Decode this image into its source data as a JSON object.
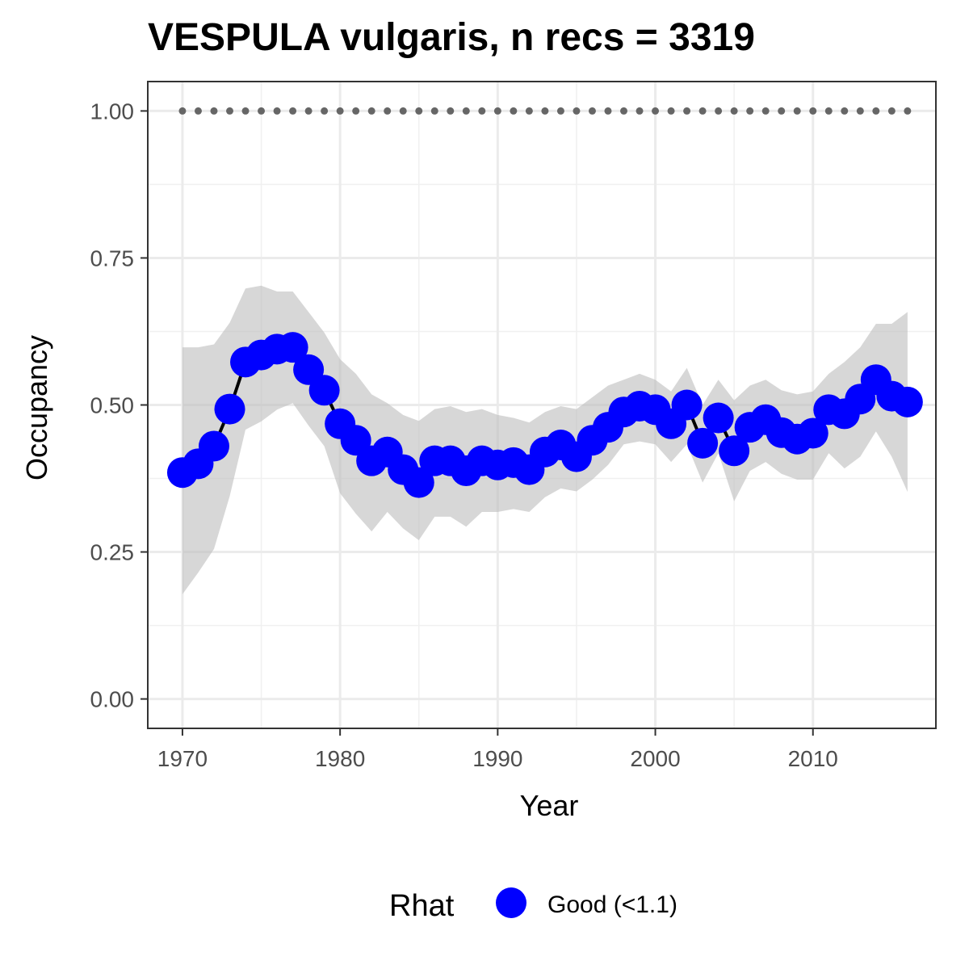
{
  "chart_data": {
    "type": "line",
    "title": "VESPULA vulgaris, n recs = 3319",
    "xlabel": "Year",
    "ylabel": "Occupancy",
    "xlim": [
      1967.8,
      2017.8
    ],
    "ylim": [
      -0.05,
      1.05
    ],
    "x_ticks": [
      1970,
      1980,
      1990,
      2000,
      2010
    ],
    "x_tick_labels": [
      "1970",
      "1980",
      "1990",
      "2000",
      "2010"
    ],
    "y_ticks": [
      0,
      0.25,
      0.5,
      0.75,
      1
    ],
    "y_tick_labels": [
      "0.00",
      "0.25",
      "0.50",
      "0.75",
      "1.00"
    ],
    "grid": true,
    "legend": {
      "position": "bottom",
      "title": "Rhat",
      "entries": [
        {
          "label": "Good (<1.1)",
          "color": "#0000ff"
        }
      ]
    },
    "colors": {
      "points": "#0000ff",
      "line": "#000000",
      "ribbon": "#bdbdbd",
      "reference": "#666666"
    },
    "x": [
      1970,
      1971,
      1972,
      1973,
      1974,
      1975,
      1976,
      1977,
      1978,
      1979,
      1980,
      1981,
      1982,
      1983,
      1984,
      1985,
      1986,
      1987,
      1988,
      1989,
      1990,
      1991,
      1992,
      1993,
      1994,
      1995,
      1996,
      1997,
      1998,
      1999,
      2000,
      2001,
      2002,
      2003,
      2004,
      2005,
      2006,
      2007,
      2008,
      2009,
      2010,
      2011,
      2012,
      2013,
      2014,
      2015,
      2016
    ],
    "series": [
      {
        "name": "Occupancy",
        "values": [
          0.385,
          0.4,
          0.43,
          0.493,
          0.573,
          0.585,
          0.595,
          0.598,
          0.56,
          0.525,
          0.468,
          0.44,
          0.405,
          0.42,
          0.39,
          0.368,
          0.405,
          0.405,
          0.388,
          0.405,
          0.398,
          0.402,
          0.39,
          0.42,
          0.432,
          0.412,
          0.44,
          0.462,
          0.488,
          0.498,
          0.492,
          0.468,
          0.5,
          0.435,
          0.478,
          0.422,
          0.462,
          0.475,
          0.453,
          0.442,
          0.452,
          0.492,
          0.485,
          0.51,
          0.543,
          0.515,
          0.505
        ],
        "lower": [
          0.178,
          0.215,
          0.255,
          0.345,
          0.458,
          0.472,
          0.492,
          0.503,
          0.465,
          0.43,
          0.35,
          0.315,
          0.285,
          0.318,
          0.29,
          0.27,
          0.31,
          0.31,
          0.293,
          0.318,
          0.318,
          0.323,
          0.318,
          0.343,
          0.358,
          0.353,
          0.373,
          0.398,
          0.433,
          0.438,
          0.433,
          0.403,
          0.433,
          0.368,
          0.418,
          0.336,
          0.388,
          0.403,
          0.383,
          0.373,
          0.373,
          0.418,
          0.392,
          0.412,
          0.455,
          0.412,
          0.352
        ],
        "upper": [
          0.598,
          0.598,
          0.603,
          0.64,
          0.698,
          0.703,
          0.693,
          0.693,
          0.658,
          0.623,
          0.578,
          0.553,
          0.518,
          0.503,
          0.483,
          0.473,
          0.493,
          0.498,
          0.488,
          0.493,
          0.483,
          0.478,
          0.47,
          0.488,
          0.498,
          0.493,
          0.513,
          0.533,
          0.543,
          0.553,
          0.543,
          0.523,
          0.563,
          0.5,
          0.543,
          0.508,
          0.533,
          0.543,
          0.525,
          0.518,
          0.523,
          0.553,
          0.573,
          0.598,
          0.638,
          0.638,
          0.658
        ]
      },
      {
        "name": "Reference",
        "style": "dotted",
        "values": [
          1,
          1,
          1,
          1,
          1,
          1,
          1,
          1,
          1,
          1,
          1,
          1,
          1,
          1,
          1,
          1,
          1,
          1,
          1,
          1,
          1,
          1,
          1,
          1,
          1,
          1,
          1,
          1,
          1,
          1,
          1,
          1,
          1,
          1,
          1,
          1,
          1,
          1,
          1,
          1,
          1,
          1,
          1,
          1,
          1,
          1,
          1
        ]
      }
    ]
  }
}
